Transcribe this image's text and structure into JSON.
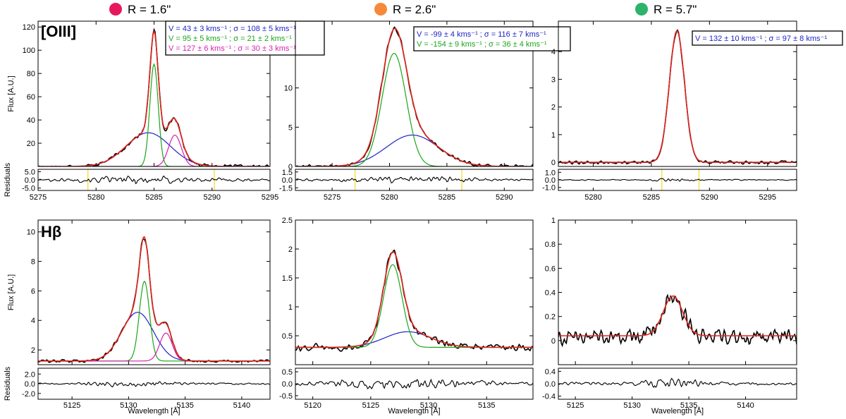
{
  "columns": [
    {
      "label": "R = 1.6\"",
      "color": "#E8175D"
    },
    {
      "label": "R = 2.6\"",
      "color": "#F58A3A"
    },
    {
      "label": "R = 5.7\"",
      "color": "#2DB36A"
    }
  ],
  "row_labels": [
    "[OIII]",
    "Hβ"
  ],
  "axis_labels": {
    "flux": "Flux [A.U.]",
    "residuals": "Residuals",
    "wavelength": "Wavelength [Å]"
  },
  "colors": {
    "data": "#000000",
    "fit": "#E3261E",
    "blue": "#1F24C8",
    "green": "#1AA61A",
    "magenta": "#D61FB0",
    "marker": "#F0DC1E"
  },
  "chart_data": [
    {
      "type": "line",
      "panel": "oiii-1.6",
      "xlim": [
        5275,
        5295
      ],
      "ylim": [
        0,
        125
      ],
      "xticks": [
        5275,
        5280,
        5285,
        5290,
        5295
      ],
      "yticks": [
        20,
        40,
        60,
        80,
        100,
        120
      ],
      "ylabel": "Flux [A.U.]",
      "baseline": 0,
      "components": [
        {
          "color": "blue",
          "center": 5284.5,
          "amp": 29,
          "sigma": 1.9
        },
        {
          "color": "green",
          "center": 5285.0,
          "amp": 88,
          "sigma": 0.36
        },
        {
          "color": "magenta",
          "center": 5286.8,
          "amp": 27,
          "sigma": 0.55
        }
      ],
      "noise": 1.2,
      "residuals": {
        "ylim": [
          -6.5,
          6.5
        ],
        "yticks": [
          5.0,
          0.0,
          -5.0
        ],
        "tick_labels": [
          "5.0",
          "0.0",
          "-5.0"
        ],
        "markers": [
          5279.3,
          5290.2
        ],
        "noise": 1.0
      },
      "legend": [
        {
          "color": "blue",
          "text": "V =   43 ± 3  kms⁻¹ ; σ = 108 ± 5 kms⁻¹"
        },
        {
          "color": "green",
          "text": "V =   95 ± 5  kms⁻¹ ; σ =  21 ± 2 kms⁻¹"
        },
        {
          "color": "magenta",
          "text": "V = 127 ± 6 kms⁻¹  ; σ =  30 ± 3 kms⁻¹"
        }
      ]
    },
    {
      "type": "line",
      "panel": "oiii-2.6",
      "xlim": [
        5271.8,
        5292.5
      ],
      "ylim": [
        0,
        18.5
      ],
      "xticks": [
        5275,
        5280,
        5285,
        5290
      ],
      "yticks": [
        0,
        5,
        10
      ],
      "ylabel": "",
      "baseline": 0,
      "components": [
        {
          "color": "blue",
          "center": 5282.0,
          "amp": 4.0,
          "sigma": 2.3
        },
        {
          "color": "green",
          "center": 5280.4,
          "amp": 14.4,
          "sigma": 1.05
        }
      ],
      "noise": 0.2,
      "residuals": {
        "ylim": [
          -2.0,
          2.0
        ],
        "yticks": [
          1.5,
          0.0,
          -1.5
        ],
        "tick_labels": [
          "1.5",
          "0.0",
          "-1.5"
        ],
        "markers": [
          5277.0,
          5286.3
        ],
        "noise": 0.25
      },
      "legend": [
        {
          "color": "blue",
          "text": "V =    -99 ± 4 kms⁻¹ ; σ = 116 ± 7 kms⁻¹"
        },
        {
          "color": "green",
          "text": "V =  -154 ± 9 kms⁻¹ ; σ =   36 ± 4 kms⁻¹"
        }
      ]
    },
    {
      "type": "line",
      "panel": "oiii-5.7",
      "xlim": [
        5277,
        5297.5
      ],
      "ylim": [
        -0.15,
        5.1
      ],
      "xticks": [
        5280,
        5285,
        5290,
        5295
      ],
      "yticks": [
        0,
        1,
        2,
        3,
        4
      ],
      "ylabel": "",
      "baseline": 0,
      "components": [
        {
          "color": "blue",
          "center": 5287.2,
          "amp": 4.75,
          "sigma": 0.65
        }
      ],
      "noise": 0.05,
      "residuals": {
        "ylim": [
          -1.4,
          1.4
        ],
        "yticks": [
          1.0,
          0.0,
          -1.0
        ],
        "tick_labels": [
          "1.0",
          "0.0",
          "-1.0"
        ],
        "markers": [
          5285.9,
          5289.1
        ],
        "noise": 0.12
      },
      "legend": [
        {
          "color": "blue",
          "text": "V = 132 ± 10 kms⁻¹ ; σ = 97 ± 8 kms⁻¹"
        }
      ]
    },
    {
      "type": "line",
      "panel": "hb-1.6",
      "xlim": [
        5122,
        5142.5
      ],
      "ylim": [
        1.0,
        10.8
      ],
      "xticks": [
        5125,
        5130,
        5135,
        5140
      ],
      "yticks": [
        2,
        4,
        6,
        8,
        10
      ],
      "ylabel": "Flux [A.U.]",
      "baseline": 1.25,
      "components": [
        {
          "color": "blue",
          "center": 5130.8,
          "amp": 3.3,
          "sigma": 1.4
        },
        {
          "color": "green",
          "center": 5131.4,
          "amp": 5.4,
          "sigma": 0.45
        },
        {
          "color": "magenta",
          "center": 5133.3,
          "amp": 1.9,
          "sigma": 0.55
        }
      ],
      "noise": 0.08,
      "residuals": {
        "ylim": [
          -3.2,
          3.2
        ],
        "yticks": [
          2.0,
          0.0,
          -2.0
        ],
        "tick_labels": [
          "2.0",
          "0.0",
          "-2.0"
        ],
        "markers": [],
        "noise": 0.25
      },
      "legend": []
    },
    {
      "type": "line",
      "panel": "hb-2.6",
      "xlim": [
        5118.5,
        5139
      ],
      "ylim": [
        0,
        2.5
      ],
      "xticks": [
        5120,
        5125,
        5130,
        5135
      ],
      "yticks": [
        0.5,
        1.0,
        1.5,
        2.0,
        2.5
      ],
      "ylabel": "",
      "baseline": 0.3,
      "components": [
        {
          "color": "blue",
          "center": 5128.2,
          "amp": 0.27,
          "sigma": 2.0
        },
        {
          "color": "green",
          "center": 5126.9,
          "amp": 1.43,
          "sigma": 0.8
        }
      ],
      "noise": 0.05,
      "residuals": {
        "ylim": [
          -0.65,
          0.65
        ],
        "yticks": [
          0.5,
          0.0,
          -0.5
        ],
        "tick_labels": [
          "0.5",
          "0.0",
          "-0.5"
        ],
        "markers": [],
        "noise": 0.1
      },
      "legend": []
    },
    {
      "type": "line",
      "panel": "hb-5.7",
      "xlim": [
        5123.5,
        5144.5
      ],
      "ylim": [
        -0.2,
        1.0
      ],
      "xticks": [
        5125,
        5130,
        5135,
        5140
      ],
      "yticks": [
        0.0,
        0.2,
        0.4,
        0.6,
        0.8,
        1.0
      ],
      "ylabel": "",
      "baseline": 0.04,
      "components": [
        {
          "color": "fit",
          "center": 5133.6,
          "amp": 0.33,
          "sigma": 0.85
        }
      ],
      "noise": 0.06,
      "residuals": {
        "ylim": [
          -0.5,
          0.5
        ],
        "yticks": [
          0.4,
          0.0,
          -0.4
        ],
        "tick_labels": [
          "0.4",
          "0.0",
          "-0.4"
        ],
        "markers": [],
        "noise": 0.08
      },
      "legend": []
    }
  ]
}
